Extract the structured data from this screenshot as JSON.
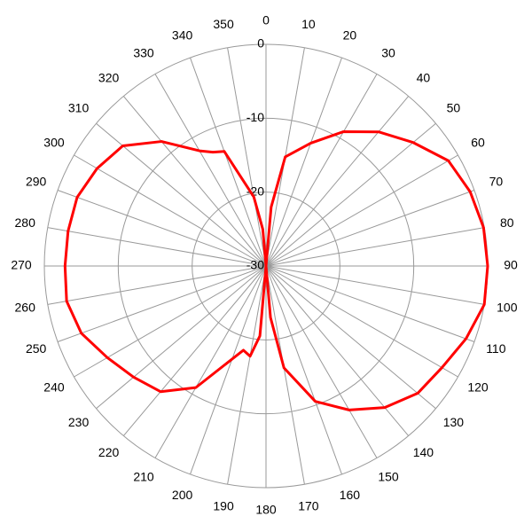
{
  "chart_data": {
    "type": "polar",
    "theta": [
      0,
      5,
      10,
      20,
      30,
      40,
      50,
      60,
      70,
      80,
      90,
      100,
      110,
      120,
      130,
      140,
      150,
      160,
      170,
      175,
      180,
      185,
      190,
      195,
      200,
      210,
      220,
      230,
      240,
      250,
      260,
      270,
      280,
      290,
      300,
      310,
      320,
      330,
      335,
      340,
      350,
      355
    ],
    "r": [
      -30,
      -22,
      -15,
      -12.3,
      -9,
      -6.3,
      -4,
      -1.5,
      -0.6,
      -0.1,
      0,
      0,
      -1.2,
      -2.5,
      -3.2,
      -5,
      -7.5,
      -10.5,
      -16,
      -23,
      -30,
      -20.5,
      -17.6,
      -18.2,
      -16.6,
      -11,
      -7.8,
      -6.6,
      -5.2,
      -3.4,
      -2.6,
      -2.8,
      -2.8,
      -2.8,
      -3.6,
      -4.7,
      -8,
      -12,
      -13,
      -13.5,
      -20.5,
      -25
    ],
    "color": "#ff0000",
    "rlim": [
      -30,
      0
    ],
    "rticks": [
      -30,
      -20,
      -10,
      0
    ],
    "thetaticks": [
      0,
      10,
      20,
      30,
      40,
      50,
      60,
      70,
      80,
      90,
      100,
      110,
      120,
      130,
      140,
      150,
      160,
      170,
      180,
      190,
      200,
      210,
      220,
      230,
      240,
      250,
      260,
      270,
      280,
      290,
      300,
      310,
      320,
      330,
      340,
      350
    ],
    "grid": true
  }
}
